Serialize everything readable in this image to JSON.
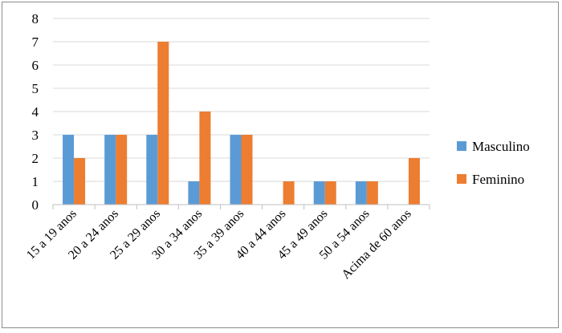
{
  "chart_data": {
    "type": "bar",
    "categories": [
      "15 a 19 anos",
      "20 a 24 anos",
      "25 a 29 anos",
      "30 a 34 anos",
      "35 a 39 anos",
      "40 a 44 anos",
      "45 a 49 anos",
      "50 a 54 anos",
      "Acima de 60 anos"
    ],
    "series": [
      {
        "name": "Masculino",
        "color": "#5b9bd5",
        "values": [
          3,
          3,
          3,
          1,
          3,
          0,
          1,
          1,
          0
        ]
      },
      {
        "name": "Feminino",
        "color": "#ed7d31",
        "values": [
          2,
          3,
          7,
          4,
          3,
          1,
          1,
          1,
          2
        ]
      }
    ],
    "ylim": [
      0,
      8
    ],
    "yticks": [
      "0",
      "1",
      "2",
      "3",
      "4",
      "5",
      "6",
      "7",
      "8"
    ],
    "grid": true,
    "legend_position": "right"
  }
}
